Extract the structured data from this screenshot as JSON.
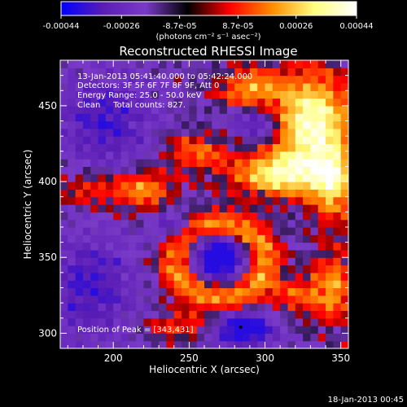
{
  "chart_data": {
    "type": "heatmap",
    "title": "Reconstructed RHESSI Image",
    "xlabel": "Heliocentric X (arcsec)",
    "ylabel": "Heliocentric Y (arcsec)",
    "xlim": [
      165,
      355
    ],
    "ylim": [
      290,
      480
    ],
    "x_ticks": [
      200,
      250,
      300,
      350
    ],
    "y_ticks": [
      300,
      350,
      400,
      450
    ],
    "colorbar": {
      "min": -0.00044,
      "max": 0.00044,
      "tick_values": [
        -0.00044,
        -0.00026,
        -8.7e-05,
        8.7e-05,
        0.00026,
        0.00044
      ],
      "tick_labels": [
        "-0.00044",
        "-0.00026",
        "-8.7e-05",
        "8.7e-05",
        "0.00026",
        "0.00044"
      ],
      "units_label": "(photons cm⁻² s⁻¹ asec⁻²)",
      "colors": [
        "#0000ff",
        "#5a1db4",
        "#7a3ac8",
        "#000000",
        "#ff0000",
        "#ff8c00",
        "#ffff80",
        "#ffffff"
      ]
    },
    "annotations": [
      "13-Jan-2013 05:41:40.000 to 05:42:24.000",
      "Detectors: 3F 5F 6F 7F 8F 9F, Att 0",
      "Energy Range: 25.0 - 50.0 keV",
      "Clean     Total counts: 827."
    ],
    "peak_label": "Position of Peak = [343,431]",
    "peak_position": [
      343,
      431
    ],
    "footer_date": "18-Jan-2013 00:45",
    "features": {
      "ring_center": [
        270,
        348
      ],
      "blue_minima": [
        [
          270,
          350
        ],
        [
          285,
          303
        ],
        [
          295,
          440
        ]
      ]
    }
  }
}
